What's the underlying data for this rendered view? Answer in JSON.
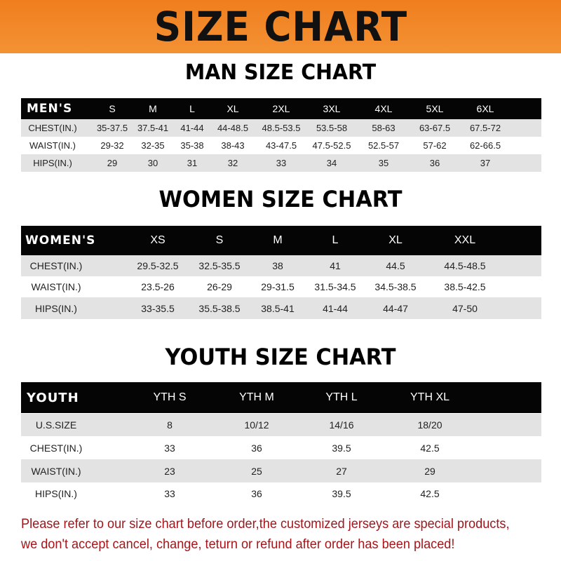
{
  "banner_title": "SIZE CHART",
  "men": {
    "title": "MAN SIZE CHART",
    "header": [
      "MEN'S",
      "S",
      "M",
      "L",
      "XL",
      "2XL",
      "3XL",
      "4XL",
      "5XL",
      "6XL"
    ],
    "rows": [
      [
        "CHEST(IN.)",
        "35-37.5",
        "37.5-41",
        "41-44",
        "44-48.5",
        "48.5-53.5",
        "53.5-58",
        "58-63",
        "63-67.5",
        "67.5-72"
      ],
      [
        "WAIST(IN.)",
        "29-32",
        "32-35",
        "35-38",
        "38-43",
        "43-47.5",
        "47.5-52.5",
        "52.5-57",
        "57-62",
        "62-66.5"
      ],
      [
        "HIPS(IN.)",
        "29",
        "30",
        "31",
        "32",
        "33",
        "34",
        "35",
        "36",
        "37"
      ]
    ]
  },
  "women": {
    "title": "WOMEN SIZE CHART",
    "header": [
      "WOMEN'S",
      "XS",
      "S",
      "M",
      "L",
      "XL",
      "XXL"
    ],
    "rows": [
      [
        "CHEST(IN.)",
        "29.5-32.5",
        "32.5-35.5",
        "38",
        "41",
        "44.5",
        "44.5-48.5"
      ],
      [
        "WAIST(IN.)",
        "23.5-26",
        "26-29",
        "29-31.5",
        "31.5-34.5",
        "34.5-38.5",
        "38.5-42.5"
      ],
      [
        "HIPS(IN.)",
        "33-35.5",
        "35.5-38.5",
        "38.5-41",
        "41-44",
        "44-47",
        "47-50"
      ]
    ]
  },
  "youth": {
    "title": "YOUTH SIZE CHART",
    "header": [
      "YOUTH",
      "YTH S",
      "YTH M",
      "YTH L",
      "YTH XL"
    ],
    "rows": [
      [
        "U.S.SIZE",
        "8",
        "10/12",
        "14/16",
        "18/20"
      ],
      [
        "CHEST(IN.)",
        "33",
        "36",
        "39.5",
        "42.5"
      ],
      [
        "WAIST(IN.)",
        "23",
        "25",
        "27",
        "29"
      ],
      [
        "HIPS(IN.)",
        "33",
        "36",
        "39.5",
        "42.5"
      ]
    ]
  },
  "notice": {
    "line1": "Please refer to our size chart before order,the customized jerseys are special products,",
    "line2": "we don't accept cancel, change, teturn or refund after order has been placed!"
  }
}
